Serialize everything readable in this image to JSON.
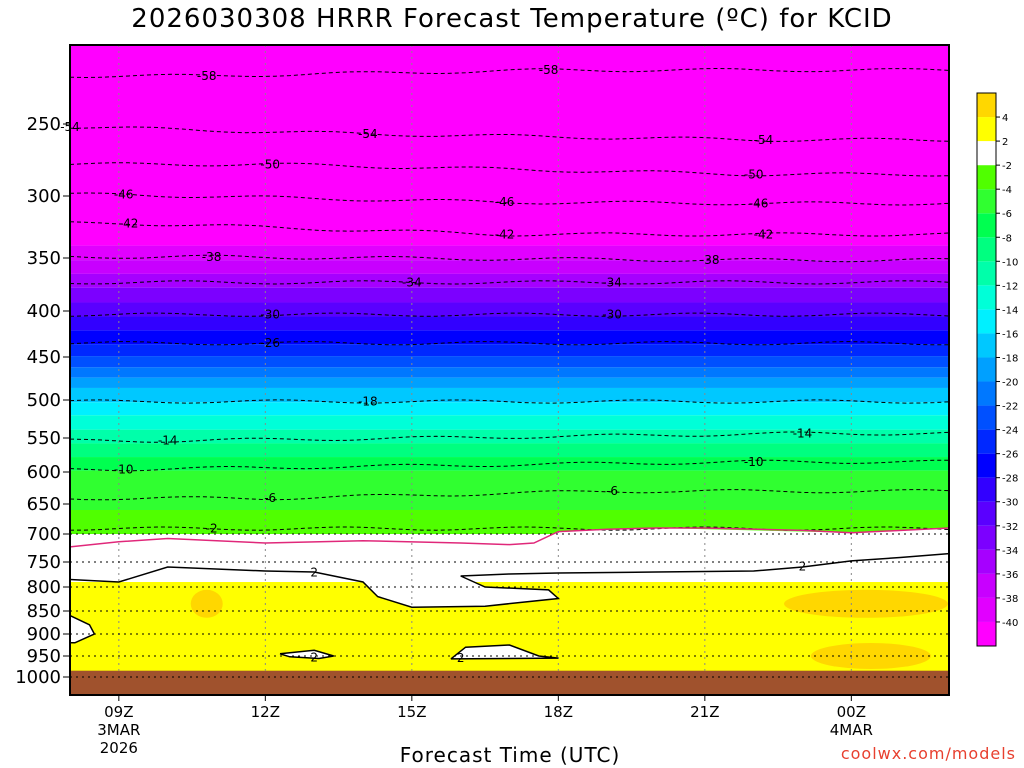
{
  "chart_data": {
    "type": "heatmap",
    "title": "2026030308 HRRR Forecast Temperature (ºC) for KCID",
    "xlabel": "Forecast Time (UTC)",
    "ylabel": "",
    "credit": "coolwx.com/models",
    "x_ticks": [
      {
        "label": "09Z",
        "sub": [
          "3MAR",
          "2026"
        ],
        "hour": 9
      },
      {
        "label": "12Z",
        "sub": [],
        "hour": 12
      },
      {
        "label": "15Z",
        "sub": [],
        "hour": 15
      },
      {
        "label": "18Z",
        "sub": [],
        "hour": 18
      },
      {
        "label": "21Z",
        "sub": [],
        "hour": 21
      },
      {
        "label": "00Z",
        "sub": [
          "4MAR"
        ],
        "hour": 24
      }
    ],
    "xlim_hours": [
      8,
      26
    ],
    "y_ticks": [
      250,
      300,
      350,
      400,
      450,
      500,
      550,
      600,
      650,
      700,
      750,
      800,
      850,
      900,
      950,
      1000
    ],
    "ylim_hPa": [
      1000,
      210
    ],
    "surface_pressure_hPa": 985,
    "grid": true,
    "colorbar": {
      "levels": [
        -40,
        -38,
        -36,
        -34,
        -32,
        -30,
        -28,
        -26,
        -24,
        -22,
        -20,
        -18,
        -16,
        -14,
        -12,
        -10,
        -8,
        -6,
        -4,
        -2,
        2,
        4
      ],
      "colors": [
        "#ff00ff",
        "#e100ff",
        "#c800ff",
        "#a600ff",
        "#7c00ff",
        "#5a00ff",
        "#3200ff",
        "#0000ff",
        "#0028ff",
        "#0050ff",
        "#0078ff",
        "#00a0ff",
        "#00c8ff",
        "#00f0ff",
        "#00ffd8",
        "#00ffaa",
        "#00ff80",
        "#00ff50",
        "#30ff30",
        "#50ff00",
        "#ffffff",
        "#ffff00",
        "#ffd700"
      ]
    },
    "contour_labels": [
      {
        "v": "-58",
        "pts": [
          [
            10.8,
            225
          ],
          [
            17.8,
            222
          ]
        ]
      },
      {
        "v": "-54",
        "pts": [
          [
            8.0,
            252
          ],
          [
            14.1,
            257
          ],
          [
            22.2,
            261
          ]
        ]
      },
      {
        "v": "-50",
        "pts": [
          [
            12.1,
            278
          ],
          [
            22.0,
            285
          ]
        ]
      },
      {
        "v": "-46",
        "pts": [
          [
            9.1,
            299
          ],
          [
            16.9,
            305
          ],
          [
            22.1,
            306
          ]
        ]
      },
      {
        "v": "-42",
        "pts": [
          [
            9.2,
            322
          ],
          [
            16.9,
            331
          ],
          [
            22.2,
            331
          ]
        ]
      },
      {
        "v": "-38",
        "pts": [
          [
            10.9,
            349
          ],
          [
            21.1,
            352
          ]
        ]
      },
      {
        "v": "-34",
        "pts": [
          [
            15.0,
            373
          ],
          [
            19.1,
            373
          ]
        ]
      },
      {
        "v": "-30",
        "pts": [
          [
            12.1,
            404
          ],
          [
            19.1,
            404
          ]
        ]
      },
      {
        "v": "-26",
        "pts": [
          [
            12.1,
            435
          ]
        ]
      },
      {
        "v": "-18",
        "pts": [
          [
            14.1,
            502
          ]
        ]
      },
      {
        "v": "-14",
        "pts": [
          [
            10.0,
            554
          ],
          [
            23.0,
            544
          ]
        ]
      },
      {
        "v": "-10",
        "pts": [
          [
            9.1,
            596
          ],
          [
            22.0,
            585
          ]
        ]
      },
      {
        "v": "-6",
        "pts": [
          [
            12.1,
            641
          ],
          [
            19.1,
            630
          ]
        ]
      },
      {
        "v": "-2",
        "pts": [
          [
            10.9,
            691
          ]
        ]
      },
      {
        "v": "2",
        "pts": [
          [
            13.0,
            771
          ],
          [
            23.0,
            759
          ]
        ]
      },
      {
        "v": "2",
        "pts": [
          [
            13.0,
            953
          ],
          [
            16.0,
            955
          ]
        ]
      }
    ],
    "zero_line_hPa": [
      [
        8,
        723
      ],
      [
        9,
        714
      ],
      [
        10,
        708
      ],
      [
        12,
        716
      ],
      [
        14,
        712
      ],
      [
        16,
        716
      ],
      [
        17,
        719
      ],
      [
        17.5,
        716
      ],
      [
        18,
        696
      ],
      [
        19,
        692
      ],
      [
        20,
        690
      ],
      [
        21,
        690
      ],
      [
        23,
        694
      ],
      [
        24,
        698
      ],
      [
        26,
        690
      ]
    ]
  }
}
